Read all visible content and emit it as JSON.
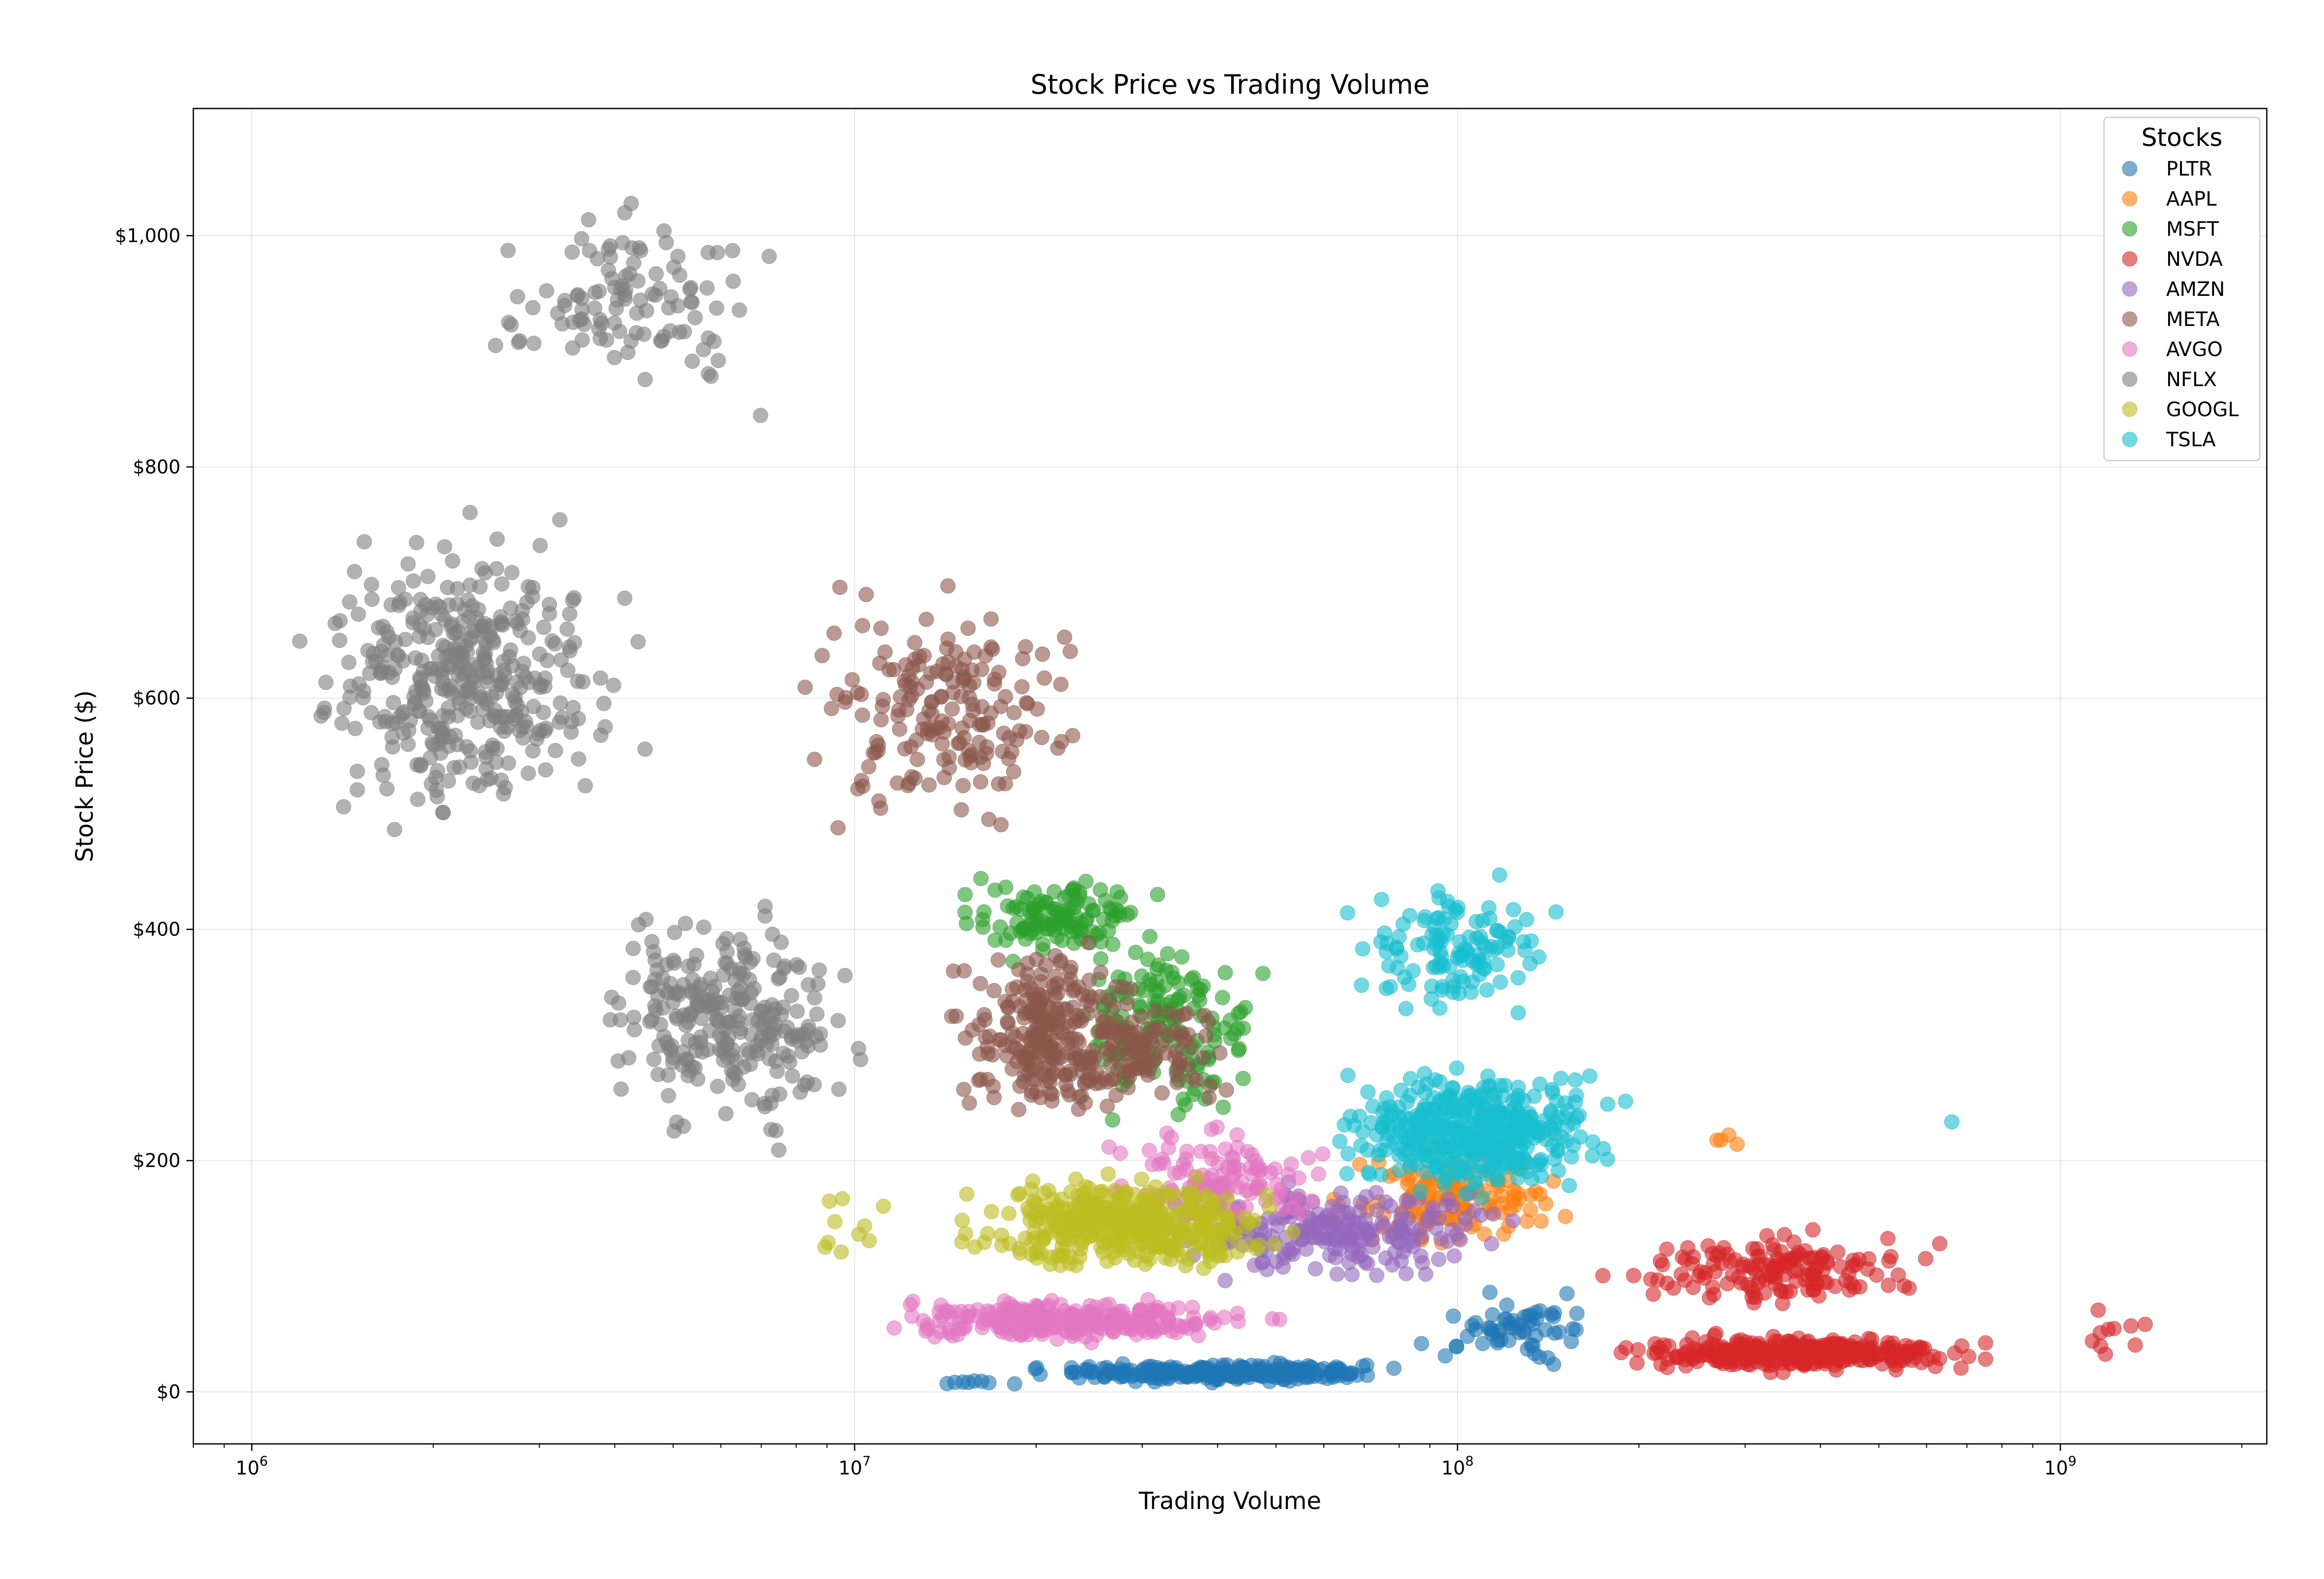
{
  "chart_data": {
    "type": "scatter",
    "title": "Stock Price vs Trading Volume",
    "xlabel": "Trading Volume",
    "ylabel": "Stock Price ($)",
    "xscale": "log",
    "xlim": [
      800000,
      2200000000
    ],
    "ylim": [
      -45,
      1110
    ],
    "x_ticks": [
      {
        "value": 1000000,
        "base": "10",
        "exp": "6"
      },
      {
        "value": 10000000,
        "base": "10",
        "exp": "7"
      },
      {
        "value": 100000000,
        "base": "10",
        "exp": "8"
      },
      {
        "value": 1000000000,
        "base": "10",
        "exp": "9"
      }
    ],
    "y_ticks": [
      {
        "value": 0,
        "label": "$0"
      },
      {
        "value": 200,
        "label": "$200"
      },
      {
        "value": 400,
        "label": "$400"
      },
      {
        "value": 600,
        "label": "$600"
      },
      {
        "value": 800,
        "label": "$800"
      },
      {
        "value": 1000,
        "label": "$1,000"
      }
    ],
    "grid": true,
    "legend": {
      "title": "Stocks",
      "position": "top-right"
    },
    "series": [
      {
        "name": "PLTR",
        "color": "#1f77b4",
        "clusters": [
          {
            "x_log_range": [
              7.2,
              8.0
            ],
            "y_range": [
              6,
              28
            ],
            "n": 260
          },
          {
            "x_log_range": [
              7.9,
              8.3
            ],
            "y_range": [
              10,
              95
            ],
            "n": 60
          },
          {
            "x_log_range": [
              7.1,
              7.3
            ],
            "y_range": [
              5,
              12
            ],
            "n": 8
          }
        ]
      },
      {
        "name": "AAPL",
        "color": "#ff7f0e",
        "clusters": [
          {
            "x_log_range": [
              7.7,
              8.3
            ],
            "y_range": [
              110,
              230
            ],
            "n": 140
          },
          {
            "x_log_range": [
              8.4,
              8.5
            ],
            "y_range": [
              200,
              230
            ],
            "n": 4
          }
        ]
      },
      {
        "name": "MSFT",
        "color": "#2ca02c",
        "clusters": [
          {
            "x_log_range": [
              7.1,
              7.55
            ],
            "y_range": [
              360,
              460
            ],
            "n": 120
          },
          {
            "x_log_range": [
              7.3,
              7.75
            ],
            "y_range": [
              210,
              420
            ],
            "n": 150
          }
        ]
      },
      {
        "name": "NVDA",
        "color": "#d62728",
        "clusters": [
          {
            "x_log_range": [
              8.15,
              9.0
            ],
            "y_range": [
              12,
              55
            ],
            "n": 320
          },
          {
            "x_log_range": [
              8.15,
              8.9
            ],
            "y_range": [
              60,
              150
            ],
            "n": 150
          },
          {
            "x_log_range": [
              9.0,
              9.2
            ],
            "y_range": [
              15,
              90
            ],
            "n": 10
          }
        ]
      },
      {
        "name": "AMZN",
        "color": "#9467bd",
        "clusters": [
          {
            "x_log_range": [
              7.4,
              8.2
            ],
            "y_range": [
              80,
              200
            ],
            "n": 220
          }
        ]
      },
      {
        "name": "META",
        "color": "#8c564b",
        "clusters": [
          {
            "x_log_range": [
              6.8,
              7.5
            ],
            "y_range": [
              450,
              740
            ],
            "n": 180
          },
          {
            "x_log_range": [
              7.1,
              7.55
            ],
            "y_range": [
              200,
              420
            ],
            "n": 260
          },
          {
            "x_log_range": [
              7.3,
              7.7
            ],
            "y_range": [
              230,
              360
            ],
            "n": 80
          }
        ]
      },
      {
        "name": "AVGO",
        "color": "#e377c2",
        "clusters": [
          {
            "x_log_range": [
              6.9,
              7.8
            ],
            "y_range": [
              35,
              90
            ],
            "n": 260
          },
          {
            "x_log_range": [
              7.3,
              7.9
            ],
            "y_range": [
              120,
              250
            ],
            "n": 120
          }
        ]
      },
      {
        "name": "NFLX",
        "color": "#7f7f7f",
        "clusters": [
          {
            "x_log_range": [
              6.3,
              6.95
            ],
            "y_range": [
              830,
              1060
            ],
            "n": 110
          },
          {
            "x_log_range": [
              6.0,
              6.7
            ],
            "y_range": [
              440,
              800
            ],
            "n": 380
          },
          {
            "x_log_range": [
              6.5,
              7.1
            ],
            "y_range": [
              180,
              470
            ],
            "n": 260
          }
        ]
      },
      {
        "name": "GOOGL",
        "color": "#bcbd22",
        "clusters": [
          {
            "x_log_range": [
              7.1,
              7.8
            ],
            "y_range": [
              90,
              200
            ],
            "n": 420
          },
          {
            "x_log_range": [
              6.9,
              7.1
            ],
            "y_range": [
              80,
              200
            ],
            "n": 10
          }
        ]
      },
      {
        "name": "TSLA",
        "color": "#17becf",
        "clusters": [
          {
            "x_log_range": [
              7.7,
              8.35
            ],
            "y_range": [
              150,
              300
            ],
            "n": 420
          },
          {
            "x_log_range": [
              7.75,
              8.25
            ],
            "y_range": [
              300,
              470
            ],
            "n": 120
          },
          {
            "x_log_range": [
              8.8,
              8.85
            ],
            "y_range": [
              225,
              240
            ],
            "n": 1
          }
        ]
      }
    ]
  }
}
